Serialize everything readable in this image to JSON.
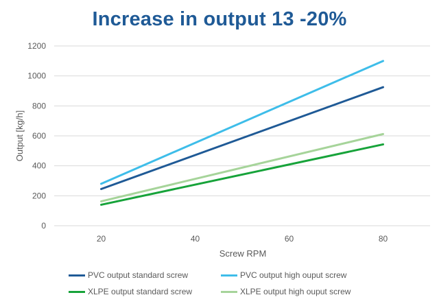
{
  "chart_data": {
    "type": "line",
    "title": "Increase in output 13 -20%",
    "xlabel": "Screw RPM",
    "ylabel": "Output  [kg/h]",
    "x": [
      20,
      80
    ],
    "xticks": [
      "20",
      "40",
      "60",
      "80"
    ],
    "yticks": [
      "0",
      "200",
      "400",
      "600",
      "800",
      "1000",
      "1200"
    ],
    "xlim": [
      10,
      90
    ],
    "ylim": [
      0,
      1200
    ],
    "grid": true,
    "legend_position": "bottom",
    "series": [
      {
        "name": "PVC output standard screw",
        "color": "#1f5a96",
        "values": [
          245,
          925
        ]
      },
      {
        "name": "PVC output high ouput screw",
        "color": "#3ebde9",
        "values": [
          280,
          1100
        ]
      },
      {
        "name": "XLPE output standard screw",
        "color": "#17a33a",
        "values": [
          140,
          543
        ]
      },
      {
        "name": "XLPE output high ouput screw",
        "color": "#a6d49a",
        "values": [
          163,
          612
        ]
      }
    ]
  }
}
